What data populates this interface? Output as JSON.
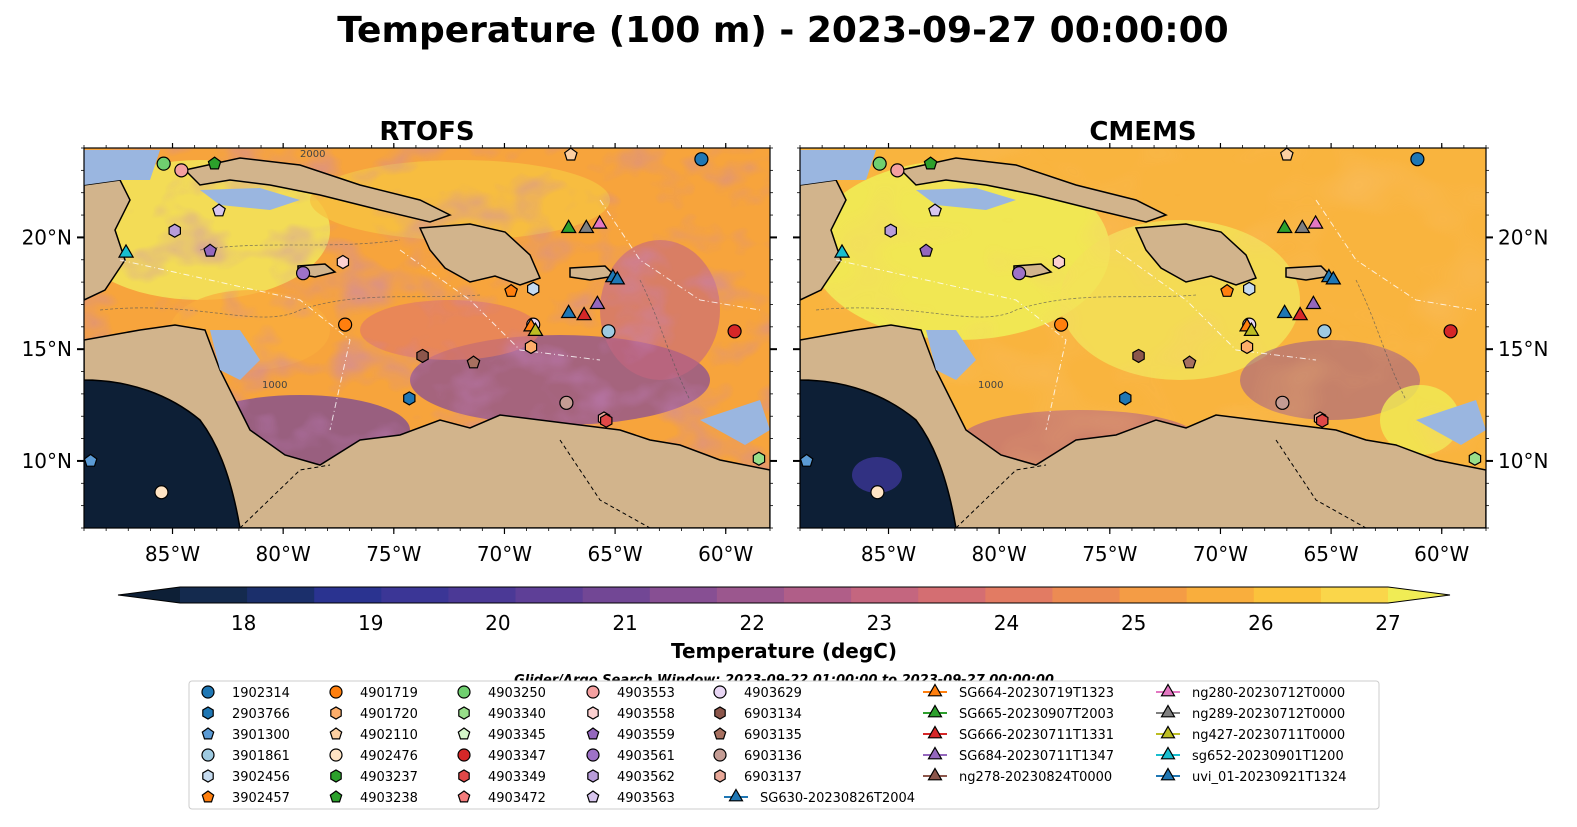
{
  "title": "Temperature (100 m) - 2023-09-27 00:00:00",
  "colors": {
    "land": "#d2b48c",
    "shelf": "#9ab6e0",
    "coast": "#000000"
  },
  "chart_data": [
    {
      "type": "heatmap",
      "title": "RTOFS",
      "xlim": [
        -89,
        -58
      ],
      "ylim": [
        7,
        24
      ],
      "x_ticks": [
        -85,
        -80,
        -75,
        -70,
        -65,
        -60
      ],
      "x_tick_labels": [
        "85°W",
        "80°W",
        "75°W",
        "70°W",
        "65°W",
        "60°W"
      ],
      "y_ticks": [
        10,
        15,
        20
      ],
      "y_tick_labels": [
        "10°N",
        "15°N",
        "20°N"
      ],
      "y_axis_side": "left",
      "grid": false
    },
    {
      "type": "heatmap",
      "title": "CMEMS",
      "xlim": [
        -89,
        -58
      ],
      "ylim": [
        7,
        24
      ],
      "x_ticks": [
        -85,
        -80,
        -75,
        -70,
        -65,
        -60
      ],
      "x_tick_labels": [
        "85°W",
        "80°W",
        "75°W",
        "70°W",
        "65°W",
        "60°W"
      ],
      "y_ticks": [
        10,
        15,
        20
      ],
      "y_tick_labels": [
        "10°N",
        "15°N",
        "20°N"
      ],
      "y_axis_side": "right",
      "grid": false
    }
  ],
  "colorbar": {
    "label": "Temperature (degC)",
    "ticks": [
      18,
      19,
      20,
      21,
      22,
      23,
      24,
      25,
      26,
      27
    ],
    "vmin": 17.5,
    "vmax": 27.0,
    "extend": "both",
    "colors": [
      "#0d1f36",
      "#142a4e",
      "#1b2f6b",
      "#2a3390",
      "#3b3696",
      "#4b3996",
      "#5e3f97",
      "#724795",
      "#874f93",
      "#9b578e",
      "#b05e88",
      "#c4667f",
      "#d46e72",
      "#e27b63",
      "#ec8b53",
      "#f49c45",
      "#f9ae3d",
      "#fbc23c",
      "#fad64a",
      "#f0ec55"
    ]
  },
  "bathy_labels": [
    "1000",
    "2000",
    "1000"
  ],
  "legend_title": "Glider/Argo Search Window: 2023-09-22 01:00:00 to 2023-09-27 00:00:00",
  "legend": [
    {
      "label": "1902314",
      "marker": "circle",
      "color": "#1f77b4"
    },
    {
      "label": "2903766",
      "marker": "hexagon",
      "color": "#1f77b4"
    },
    {
      "label": "3901300",
      "marker": "pentagon",
      "color": "#5b9bd5"
    },
    {
      "label": "3901861",
      "marker": "circle",
      "color": "#9ecae1"
    },
    {
      "label": "3902456",
      "marker": "hexagon",
      "color": "#c6dbef"
    },
    {
      "label": "3902457",
      "marker": "pentagon",
      "color": "#ff7f0e"
    },
    {
      "label": "4901719",
      "marker": "circle",
      "color": "#ff7f0e"
    },
    {
      "label": "4901720",
      "marker": "hexagon",
      "color": "#fdae6b"
    },
    {
      "label": "4902110",
      "marker": "pentagon",
      "color": "#fdd0a2"
    },
    {
      "label": "4902476",
      "marker": "circle",
      "color": "#ffe4c4"
    },
    {
      "label": "4903237",
      "marker": "hexagon",
      "color": "#2ca02c"
    },
    {
      "label": "4903238",
      "marker": "pentagon",
      "color": "#2ca02c"
    },
    {
      "label": "4903250",
      "marker": "circle",
      "color": "#6fcf6f"
    },
    {
      "label": "4903340",
      "marker": "hexagon",
      "color": "#98df8a"
    },
    {
      "label": "4903345",
      "marker": "pentagon",
      "color": "#d4f5c9"
    },
    {
      "label": "4903347",
      "marker": "circle",
      "color": "#d62728"
    },
    {
      "label": "4903349",
      "marker": "hexagon",
      "color": "#e04848"
    },
    {
      "label": "4903472",
      "marker": "pentagon",
      "color": "#f47c7c"
    },
    {
      "label": "4903553",
      "marker": "circle",
      "color": "#f4a0a0"
    },
    {
      "label": "4903558",
      "marker": "hexagon",
      "color": "#fcd0d0"
    },
    {
      "label": "4903559",
      "marker": "pentagon",
      "color": "#9467bd"
    },
    {
      "label": "4903561",
      "marker": "circle",
      "color": "#9e72c7"
    },
    {
      "label": "4903562",
      "marker": "hexagon",
      "color": "#b89cd9"
    },
    {
      "label": "4903563",
      "marker": "pentagon",
      "color": "#d8c6ee"
    },
    {
      "label": "4903629",
      "marker": "circle",
      "color": "#e8d6f4"
    },
    {
      "label": "6903134",
      "marker": "hexagon",
      "color": "#8c564b"
    },
    {
      "label": "6903135",
      "marker": "pentagon",
      "color": "#a77060"
    },
    {
      "label": "6903136",
      "marker": "circle",
      "color": "#c49c94"
    },
    {
      "label": "6903137",
      "marker": "hexagon",
      "color": "#e8a898"
    },
    {
      "label": "SG630-20230826T2004",
      "marker": "triangle",
      "color": "#1f77b4"
    },
    {
      "label": "SG664-20230719T1323",
      "marker": "triangle",
      "color": "#ff7f0e"
    },
    {
      "label": "SG665-20230907T2003",
      "marker": "triangle",
      "color": "#2ca02c"
    },
    {
      "label": "SG666-20230711T1331",
      "marker": "triangle",
      "color": "#d62728"
    },
    {
      "label": "SG684-20230711T1347",
      "marker": "triangle",
      "color": "#9467bd"
    },
    {
      "label": "ng278-20230824T0000",
      "marker": "triangle",
      "color": "#8c564b"
    },
    {
      "label": "ng280-20230712T0000",
      "marker": "triangle",
      "color": "#e377c2"
    },
    {
      "label": "ng289-20230712T0000",
      "marker": "triangle",
      "color": "#7f7f7f"
    },
    {
      "label": "ng427-20230711T0000",
      "marker": "triangle",
      "color": "#bcbd22"
    },
    {
      "label": "sg652-20230901T1200",
      "marker": "triangle",
      "color": "#17becf"
    },
    {
      "label": "uvi_01-20230921T1324",
      "marker": "triangle",
      "color": "#1f77b4"
    }
  ],
  "floats": [
    {
      "label": "1902314",
      "lon": -61.1,
      "lat": 23.5
    },
    {
      "label": "4903250",
      "lon": -85.4,
      "lat": 23.3
    },
    {
      "label": "4903553",
      "lon": -84.6,
      "lat": 23.0
    },
    {
      "label": "4903238",
      "lon": -83.1,
      "lat": 23.3
    },
    {
      "label": "4902110",
      "lon": -67.0,
      "lat": 23.7
    },
    {
      "label": "4903563",
      "lon": -82.9,
      "lat": 21.2
    },
    {
      "label": "4903562",
      "lon": -84.9,
      "lat": 20.3
    },
    {
      "label": "4903559",
      "lon": -83.3,
      "lat": 19.4
    },
    {
      "label": "4903561",
      "lon": -79.1,
      "lat": 18.4
    },
    {
      "label": "4903558",
      "lon": -77.3,
      "lat": 18.9
    },
    {
      "label": "3902457",
      "lon": -69.7,
      "lat": 17.6
    },
    {
      "label": "3902456",
      "lon": -68.7,
      "lat": 17.7
    },
    {
      "label": "4901719",
      "lon": -77.2,
      "lat": 16.1
    },
    {
      "label": "4903629",
      "lon": -68.7,
      "lat": 16.1
    },
    {
      "label": "4901720",
      "lon": -68.8,
      "lat": 15.1
    },
    {
      "label": "3901861",
      "lon": -65.3,
      "lat": 15.8
    },
    {
      "label": "4903347",
      "lon": -59.6,
      "lat": 15.8
    },
    {
      "label": "6903134",
      "lon": -73.7,
      "lat": 14.7
    },
    {
      "label": "6903135",
      "lon": -71.4,
      "lat": 14.4
    },
    {
      "label": "2903766",
      "lon": -74.3,
      "lat": 12.8
    },
    {
      "label": "6903136",
      "lon": -67.2,
      "lat": 12.6
    },
    {
      "label": "6903137",
      "lon": -65.5,
      "lat": 11.9
    },
    {
      "label": "4903349",
      "lon": -65.4,
      "lat": 11.8
    },
    {
      "label": "3901300",
      "lon": -88.7,
      "lat": 10.0
    },
    {
      "label": "4903340",
      "lon": -58.5,
      "lat": 10.1
    },
    {
      "label": "4902476",
      "lon": -85.5,
      "lat": 8.6
    },
    {
      "label": "SG665-20230907T2003",
      "lon": -67.1,
      "lat": 20.4
    },
    {
      "label": "ng289-20230712T0000",
      "lon": -66.3,
      "lat": 20.4
    },
    {
      "label": "ng280-20230712T0000",
      "lon": -65.7,
      "lat": 20.6
    },
    {
      "label": "sg652-20230901T1200",
      "lon": -87.1,
      "lat": 19.3
    },
    {
      "label": "uvi_01-20230921T1324",
      "lon": -65.1,
      "lat": 18.2
    },
    {
      "label": "SG630-20230826T2004",
      "lon": -64.9,
      "lat": 18.1
    },
    {
      "label": "SG684-20230711T1347",
      "lon": -65.8,
      "lat": 17.0
    },
    {
      "label": "SG630-20230826T2004",
      "lon": -67.1,
      "lat": 16.6
    },
    {
      "label": "SG666-20230711T1331",
      "lon": -66.4,
      "lat": 16.5
    },
    {
      "label": "SG664-20230719T1323",
      "lon": -68.8,
      "lat": 16.0
    },
    {
      "label": "ng427-20230711T0000",
      "lon": -68.6,
      "lat": 15.8
    }
  ]
}
